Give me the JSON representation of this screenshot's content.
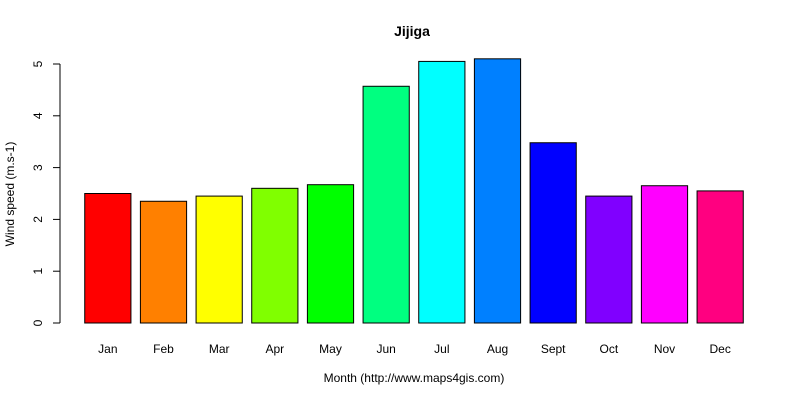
{
  "chart_data": {
    "type": "bar",
    "title": "Jijiga",
    "xlabel": "Month (http://www.maps4gis.com)",
    "ylabel": "Wind speed (m.s-1)",
    "categories": [
      "Jan",
      "Feb",
      "Mar",
      "Apr",
      "May",
      "Jun",
      "Jul",
      "Aug",
      "Sept",
      "Oct",
      "Nov",
      "Dec"
    ],
    "values": [
      2.5,
      2.35,
      2.45,
      2.6,
      2.67,
      4.57,
      5.05,
      5.1,
      3.48,
      2.45,
      2.65,
      2.55
    ],
    "colors": [
      "#FF0000",
      "#FF8000",
      "#FFFF00",
      "#80FF00",
      "#00FF00",
      "#00FF80",
      "#00FFFF",
      "#0080FF",
      "#0000FF",
      "#8000FF",
      "#FF00FF",
      "#FF0080"
    ],
    "yticks": [
      0,
      1,
      2,
      3,
      4,
      5
    ],
    "ylim": [
      0,
      5.1
    ],
    "grid": false,
    "legend": "none"
  }
}
